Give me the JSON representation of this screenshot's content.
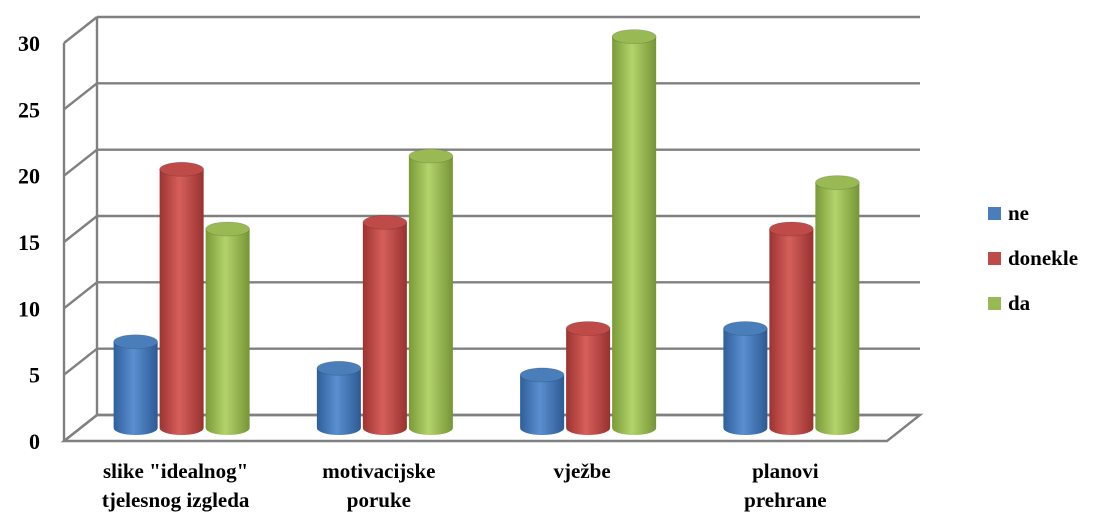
{
  "chart_data": {
    "type": "bar",
    "title": "",
    "xlabel": "",
    "ylabel": "",
    "ylim": [
      0,
      30
    ],
    "yticks": [
      "0",
      "5",
      "10",
      "15",
      "20",
      "25",
      "30"
    ],
    "grid": true,
    "legend_position": "right",
    "categories": [
      [
        "slike \"idealnog\"",
        "tjelesnog izgleda"
      ],
      [
        "motivacijske",
        "poruke"
      ],
      [
        "vježbe"
      ],
      [
        "planovi",
        "prehrane"
      ]
    ],
    "series": [
      {
        "name": "ne",
        "color": "#4a7ebb",
        "values": [
          6.5,
          4.5,
          4,
          7.5
        ]
      },
      {
        "name": "donekle",
        "color": "#be4b48",
        "values": [
          19.5,
          15.5,
          7.5,
          15
        ]
      },
      {
        "name": "da",
        "color": "#98b954",
        "values": [
          15,
          20.5,
          29.5,
          18.5
        ]
      }
    ]
  }
}
